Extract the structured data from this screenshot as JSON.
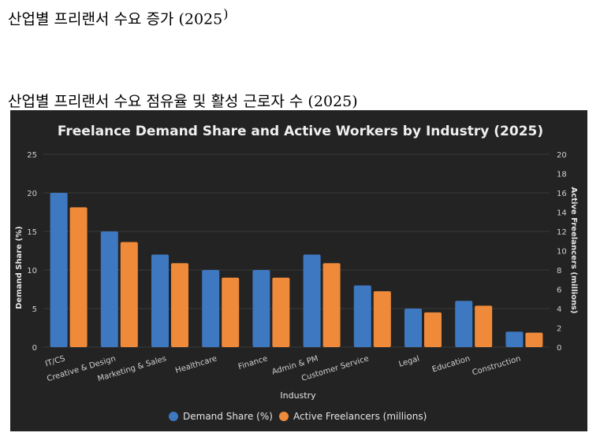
{
  "headings": {
    "top": "산업별 프리랜서 수요 증가 (2025",
    "top_suffix": ")",
    "chart_caption": "산업별 프리랜서 수요 점유율 및 활성 근로자 수 (2025)"
  },
  "colors": {
    "panel_bg": "#232323",
    "demand": "#3d78c0",
    "freelancers": "#ef8a3a",
    "text": "#e6e6e6",
    "grid": "#3a3a3a"
  },
  "chart_data": {
    "type": "bar",
    "title": "Freelance Demand Share and Active Workers by Industry (2025)",
    "xlabel": "Industry",
    "ylabel": "Demand Share (%)",
    "y2label": "Active Freelancers (millions)",
    "ylim": [
      0,
      25
    ],
    "y2lim": [
      0,
      20
    ],
    "yticks": [
      0,
      5,
      10,
      15,
      20,
      25
    ],
    "y2ticks": [
      0,
      2,
      4,
      6,
      8,
      10,
      12,
      14,
      16,
      18,
      20
    ],
    "grid": true,
    "legend_position": "bottom",
    "categories": [
      "IT/CS",
      "Creative & Design",
      "Marketing & Sales",
      "Healthcare",
      "Finance",
      "Admin & PM",
      "Customer Service",
      "Legal",
      "Education",
      "Construction"
    ],
    "series": [
      {
        "name": "Demand Share (%)",
        "axis": "left",
        "color": "#3d78c0",
        "values": [
          20,
          15,
          12,
          10,
          10,
          12,
          8,
          5,
          6,
          2
        ]
      },
      {
        "name": "Active Freelancers (millions)",
        "axis": "right",
        "color": "#ef8a3a",
        "values": [
          14.5,
          10.9,
          8.7,
          7.2,
          7.2,
          8.7,
          5.8,
          3.6,
          4.3,
          1.5
        ]
      }
    ]
  }
}
